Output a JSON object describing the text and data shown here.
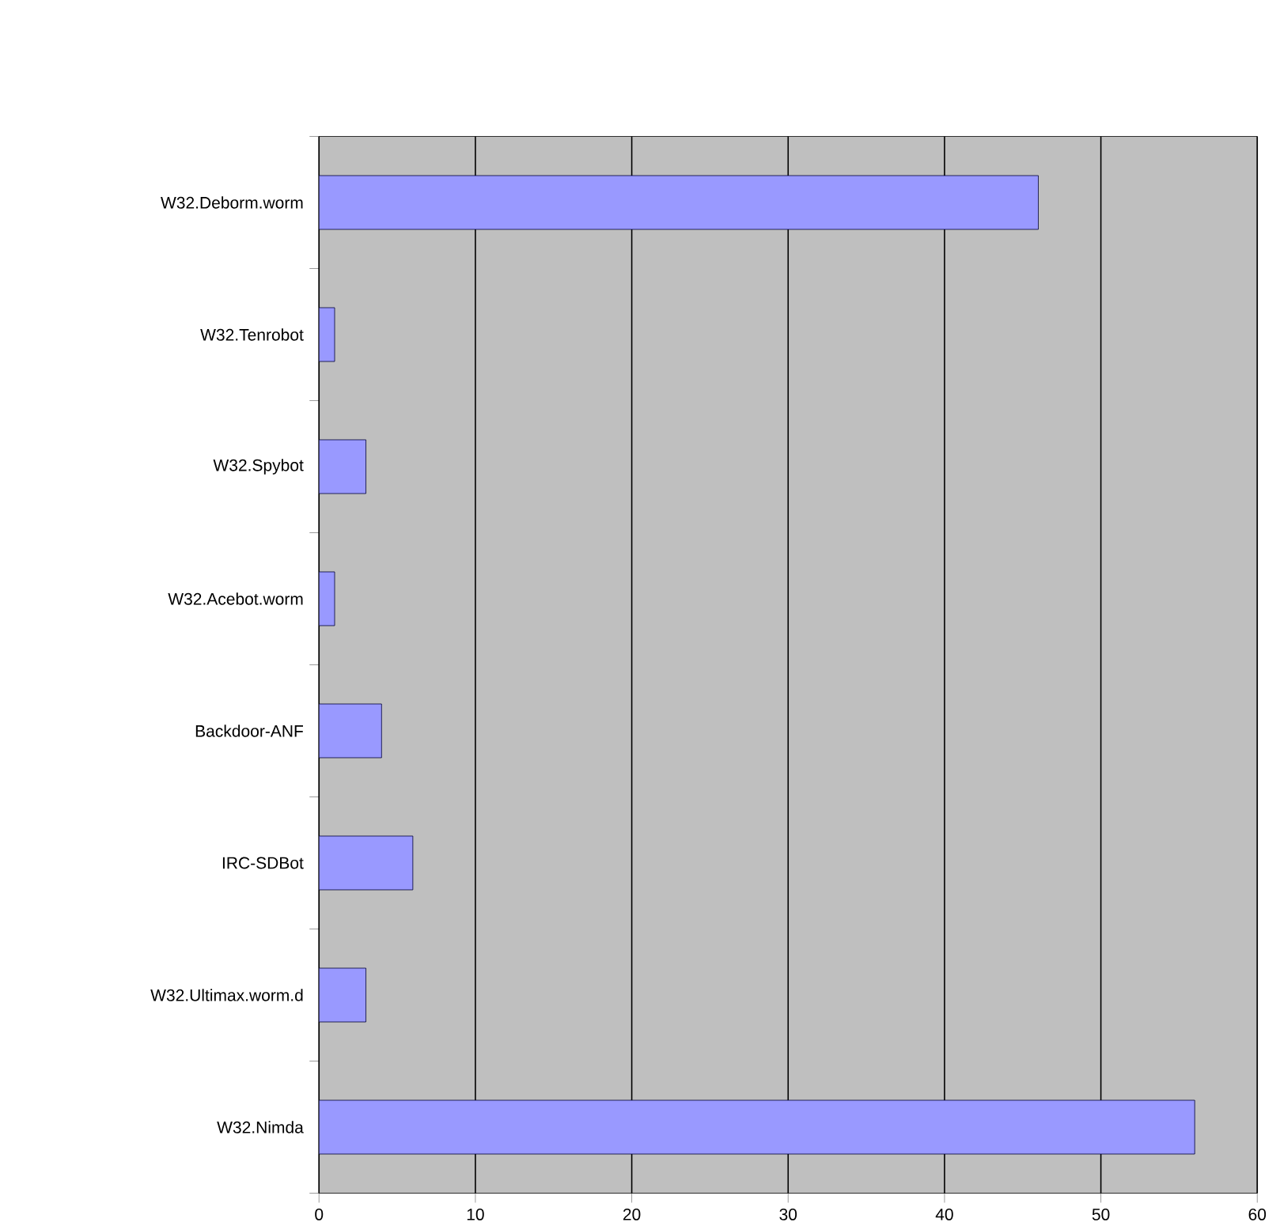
{
  "chart_data": {
    "type": "bar",
    "orientation": "horizontal",
    "categories": [
      "W32.Deborm.worm",
      "W32.Tenrobot",
      "W32.Spybot",
      "W32.Acebot.worm",
      "Backdoor-ANF",
      "IRC-SDBot",
      "W32.Ultimax.worm.d",
      "W32.Nimda"
    ],
    "values": [
      46,
      1,
      3,
      1,
      4,
      6,
      3,
      56
    ],
    "color": "#9999ff",
    "xlim": [
      0,
      60
    ],
    "xticks": [
      0,
      10,
      20,
      30,
      40,
      50,
      60
    ],
    "grid": "x"
  }
}
